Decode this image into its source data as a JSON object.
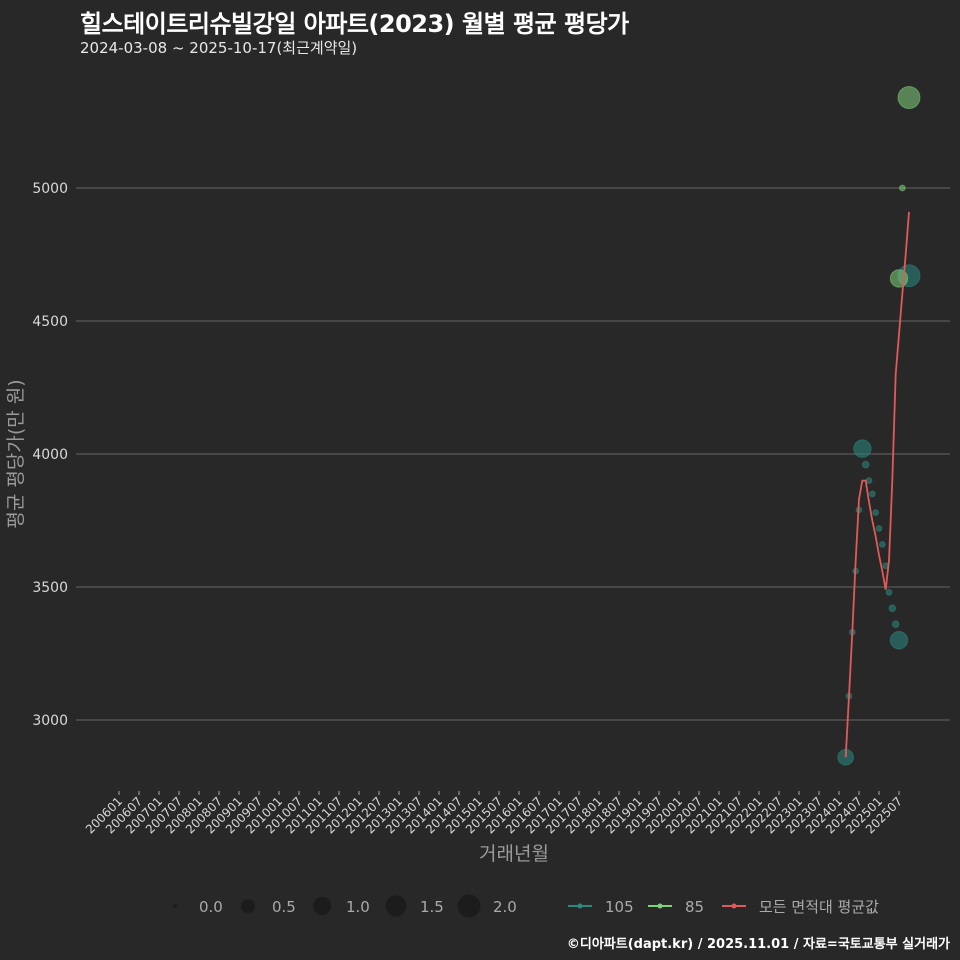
{
  "header": {
    "title": "힐스테이트리슈빌강일 아파트(2023) 월별 평균 평당가",
    "subtitle": "2024-03-08 ~ 2025-10-17(최근계약일)"
  },
  "footer": {
    "credit": "©디아파트(dapt.kr) / 2025.11.01 / 자료=국토교통부 실거래가"
  },
  "colors": {
    "background": "#282828",
    "grid": "#5a5a5a",
    "series_105": "#2a8a80",
    "series_85": "#7fd07a",
    "series_all": "#e05a5a"
  },
  "legend": {
    "size_title": "",
    "sizes": [
      "0.0",
      "0.5",
      "1.0",
      "1.5",
      "2.0"
    ],
    "series": [
      "105",
      "85",
      "모든 면적대 평균값"
    ]
  },
  "chart_data": {
    "type": "scatter",
    "title": "힐스테이트리슈빌강일 아파트(2023) 월별 평균 평당가",
    "subtitle": "2024-03-08 ~ 2025-10-17(최근계약일)",
    "xlabel": "거래년월",
    "ylabel": "평균 평당가(만 원)",
    "ylim": [
      2780,
      5380
    ],
    "yticks": [
      3000,
      3500,
      4000,
      4500,
      5000
    ],
    "xticks": [
      "200601",
      "200607",
      "200701",
      "200707",
      "200801",
      "200807",
      "200901",
      "200907",
      "201001",
      "201007",
      "201101",
      "201107",
      "201201",
      "201207",
      "201301",
      "201307",
      "201401",
      "201407",
      "201501",
      "201507",
      "201601",
      "201607",
      "201701",
      "201707",
      "201801",
      "201807",
      "201901",
      "201907",
      "202001",
      "202007",
      "202101",
      "202107",
      "202201",
      "202207",
      "202301",
      "202307",
      "202401",
      "202407",
      "202501",
      "202507"
    ],
    "grid": true,
    "legend_position": "bottom",
    "series": [
      {
        "name": "105",
        "points": [
          {
            "x": "202403",
            "y": 2860,
            "size": 1.3
          },
          {
            "x": "202404",
            "y": 3090,
            "size": 0.2
          },
          {
            "x": "202405",
            "y": 3330,
            "size": 0.2
          },
          {
            "x": "202406",
            "y": 3560,
            "size": 0.2
          },
          {
            "x": "202407",
            "y": 3790,
            "size": 0.2
          },
          {
            "x": "202408",
            "y": 4020,
            "size": 1.5
          },
          {
            "x": "202409",
            "y": 3960,
            "size": 0.3
          },
          {
            "x": "202410",
            "y": 3900,
            "size": 0.2
          },
          {
            "x": "202411",
            "y": 3850,
            "size": 0.2
          },
          {
            "x": "202412",
            "y": 3780,
            "size": 0.2
          },
          {
            "x": "202501",
            "y": 3720,
            "size": 0.2
          },
          {
            "x": "202502",
            "y": 3660,
            "size": 0.2
          },
          {
            "x": "202503",
            "y": 3580,
            "size": 0.2
          },
          {
            "x": "202504",
            "y": 3480,
            "size": 0.2
          },
          {
            "x": "202505",
            "y": 3420,
            "size": 0.3
          },
          {
            "x": "202506",
            "y": 3360,
            "size": 0.3
          },
          {
            "x": "202507",
            "y": 3300,
            "size": 1.5
          },
          {
            "x": "202510",
            "y": 4670,
            "size": 2.0
          }
        ]
      },
      {
        "name": "85",
        "points": [
          {
            "x": "202507",
            "y": 4660,
            "size": 1.5
          },
          {
            "x": "202508",
            "y": 5000,
            "size": 0.2
          },
          {
            "x": "202510",
            "y": 5340,
            "size": 2.0
          }
        ]
      },
      {
        "name": "모든 면적대 평균값",
        "points": [
          {
            "x": "202403",
            "y": 2860
          },
          {
            "x": "202404",
            "y": 3090
          },
          {
            "x": "202405",
            "y": 3330
          },
          {
            "x": "202406",
            "y": 3600
          },
          {
            "x": "202407",
            "y": 3830
          },
          {
            "x": "202408",
            "y": 3900
          },
          {
            "x": "202409",
            "y": 3900
          },
          {
            "x": "202410",
            "y": 3820
          },
          {
            "x": "202411",
            "y": 3750
          },
          {
            "x": "202412",
            "y": 3690
          },
          {
            "x": "202501",
            "y": 3620
          },
          {
            "x": "202502",
            "y": 3560
          },
          {
            "x": "202503",
            "y": 3490
          },
          {
            "x": "202504",
            "y": 3600
          },
          {
            "x": "202505",
            "y": 3900
          },
          {
            "x": "202506",
            "y": 4300
          },
          {
            "x": "202507",
            "y": 4450
          },
          {
            "x": "202508",
            "y": 4600
          },
          {
            "x": "202509",
            "y": 4750
          },
          {
            "x": "202510",
            "y": 4910
          }
        ]
      }
    ]
  }
}
